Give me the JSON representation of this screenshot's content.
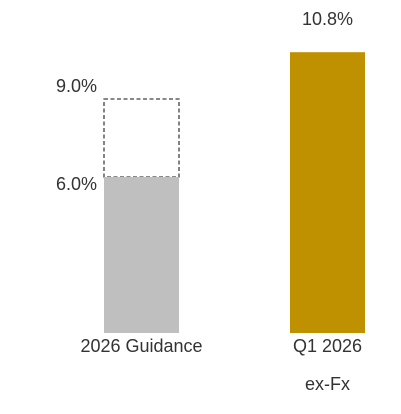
{
  "chart_data": {
    "type": "bar",
    "categories": [
      "2026 Guidance",
      "Q1 2026 ex-Fx"
    ],
    "values": [
      6.0,
      10.8
    ],
    "value_labels": [
      "6.0%",
      "10.8%"
    ],
    "range_high": [
      9.0,
      null
    ],
    "range_high_labels": [
      "9.0%",
      null
    ],
    "colors": [
      "#bfbfbf",
      "#bf9000"
    ],
    "ylim": [
      0,
      12
    ]
  }
}
